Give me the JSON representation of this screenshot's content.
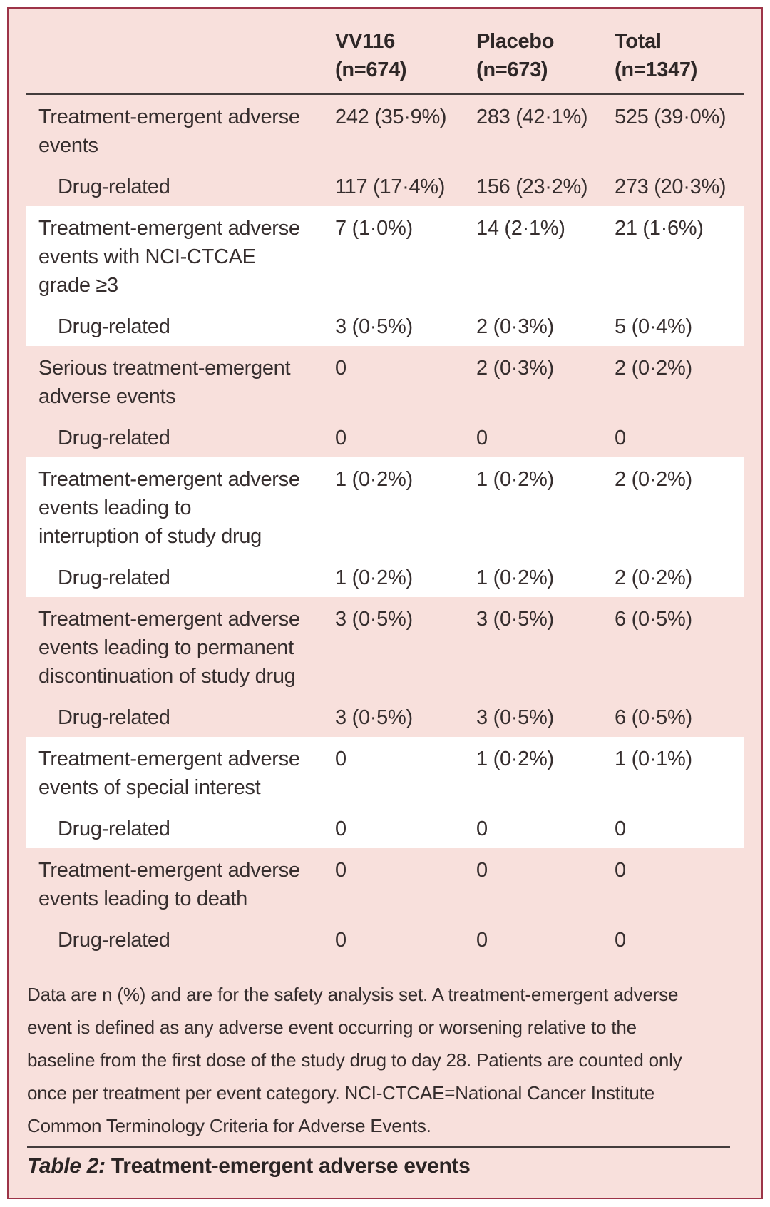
{
  "colors": {
    "background_pink": "#f8e0dc",
    "band_white": "#ffffff",
    "border_maroon": "#9d3448",
    "rule_dark": "#443c3c",
    "text": "#362e2e"
  },
  "header": {
    "columns": [
      "VV116\n(n=674)",
      "Placebo\n(n=673)",
      "Total\n(n=1347)"
    ]
  },
  "groups": [
    {
      "shade": "pink",
      "rows": [
        {
          "label": "Treatment-emergent adverse\nevents",
          "indent": false,
          "values": [
            "242 (35·9%)",
            "283 (42·1%)",
            "525 (39·0%)"
          ]
        },
        {
          "label": "Drug-related",
          "indent": true,
          "values": [
            "117 (17·4%)",
            "156 (23·2%)",
            "273 (20·3%)"
          ]
        }
      ]
    },
    {
      "shade": "white",
      "rows": [
        {
          "label": "Treatment-emergent adverse\nevents with NCI-CTCAE\ngrade ≥3",
          "indent": false,
          "values": [
            "7 (1·0%)",
            "14 (2·1%)",
            "21 (1·6%)"
          ]
        },
        {
          "label": "Drug-related",
          "indent": true,
          "values": [
            "3 (0·5%)",
            "2 (0·3%)",
            "5 (0·4%)"
          ]
        }
      ]
    },
    {
      "shade": "pink",
      "rows": [
        {
          "label": "Serious treatment-emergent\nadverse events",
          "indent": false,
          "values": [
            "0",
            "2 (0·3%)",
            "2 (0·2%)"
          ]
        },
        {
          "label": "Drug-related",
          "indent": true,
          "values": [
            "0",
            "0",
            "0"
          ]
        }
      ]
    },
    {
      "shade": "white",
      "rows": [
        {
          "label": "Treatment-emergent adverse\nevents leading to\ninterruption of study drug",
          "indent": false,
          "values": [
            "1 (0·2%)",
            "1 (0·2%)",
            "2 (0·2%)"
          ]
        },
        {
          "label": "Drug-related",
          "indent": true,
          "values": [
            "1 (0·2%)",
            "1 (0·2%)",
            "2 (0·2%)"
          ]
        }
      ]
    },
    {
      "shade": "pink",
      "rows": [
        {
          "label": "Treatment-emergent adverse\nevents leading to permanent\ndiscontinuation of study drug",
          "indent": false,
          "values": [
            "3 (0·5%)",
            "3 (0·5%)",
            "6 (0·5%)"
          ]
        },
        {
          "label": "Drug-related",
          "indent": true,
          "values": [
            "3 (0·5%)",
            "3 (0·5%)",
            "6 (0·5%)"
          ]
        }
      ]
    },
    {
      "shade": "white",
      "rows": [
        {
          "label": "Treatment-emergent adverse\nevents of special interest",
          "indent": false,
          "values": [
            "0",
            "1 (0·2%)",
            "1 (0·1%)"
          ]
        },
        {
          "label": "Drug-related",
          "indent": true,
          "values": [
            "0",
            "0",
            "0"
          ]
        }
      ]
    },
    {
      "shade": "pink",
      "rows": [
        {
          "label": "Treatment-emergent adverse\nevents leading to death",
          "indent": false,
          "values": [
            "0",
            "0",
            "0"
          ]
        },
        {
          "label": "Drug-related",
          "indent": true,
          "values": [
            "0",
            "0",
            "0"
          ]
        }
      ]
    }
  ],
  "footnote": "Data are n (%) and are for the safety analysis set. A treatment-emergent adverse\nevent is defined as any adverse event occurring or worsening relative to the\nbaseline from the first dose of the study drug to day 28. Patients are counted only\nonce per treatment per event category. NCI-CTCAE=National Cancer Institute\nCommon Terminology Criteria for Adverse Events.",
  "caption": {
    "prefix": "Table 2:",
    "title": " Treatment-emergent adverse events"
  }
}
